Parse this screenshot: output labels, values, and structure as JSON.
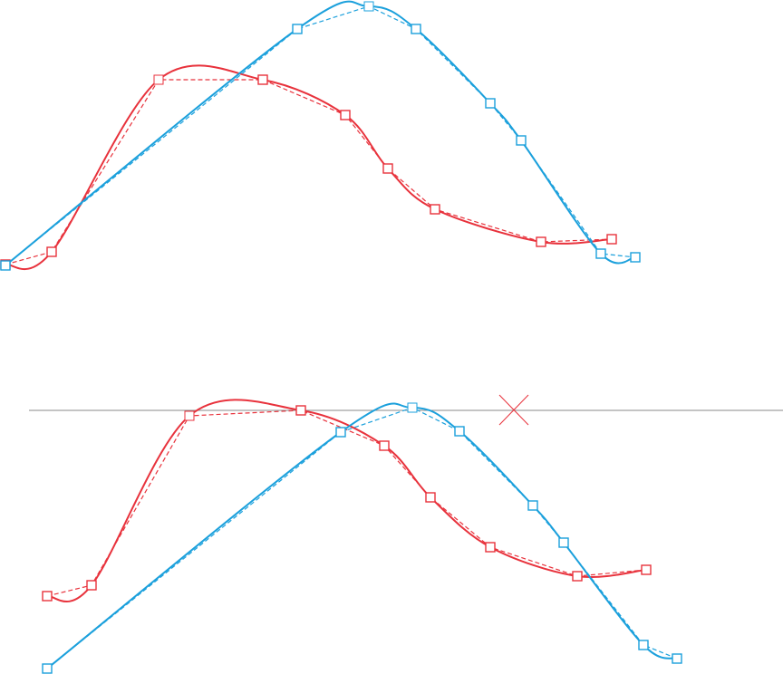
{
  "colors": {
    "red": "#e8323c",
    "blue": "#1ba0dc",
    "reference_line": "#8a8a8a",
    "background": "#ffffff"
  },
  "panels": [
    {
      "name": "top-panel",
      "reference_line": false,
      "paths": [
        {
          "name": "red",
          "color": "red",
          "selected_index": 2,
          "points": [
            [
              6,
              292
            ],
            [
              57,
              278
            ],
            [
              175,
              88
            ],
            [
              290,
              88
            ],
            [
              381,
              127
            ],
            [
              428,
              186
            ],
            [
              480,
              231
            ],
            [
              597,
              267
            ],
            [
              675,
              264
            ]
          ]
        },
        {
          "name": "blue",
          "color": "blue",
          "selected_index": 2,
          "points": [
            [
              6,
              293
            ],
            [
              328,
              32
            ],
            [
              407,
              7
            ],
            [
              459,
              32
            ],
            [
              541,
              114
            ],
            [
              575,
              155
            ],
            [
              663,
              280
            ],
            [
              701,
              284
            ]
          ]
        }
      ]
    },
    {
      "name": "bottom-panel",
      "reference_line": true,
      "cross_marker": true,
      "paths": [
        {
          "name": "red",
          "color": "red",
          "selected_index": 2,
          "points": [
            [
              52,
              658
            ],
            [
              101,
              646
            ],
            [
              209,
              459
            ],
            [
              332,
              453
            ],
            [
              424,
              492
            ],
            [
              475,
              549
            ],
            [
              541,
              604
            ],
            [
              637,
              636
            ],
            [
              713,
              629
            ]
          ]
        },
        {
          "name": "blue",
          "color": "blue",
          "selected_index": 2,
          "points": [
            [
              52,
              738
            ],
            [
              376,
              477
            ],
            [
              455,
              450
            ],
            [
              507,
              476
            ],
            [
              588,
              558
            ],
            [
              622,
              599
            ],
            [
              710,
              712
            ],
            [
              747,
              727
            ]
          ]
        }
      ]
    }
  ]
}
